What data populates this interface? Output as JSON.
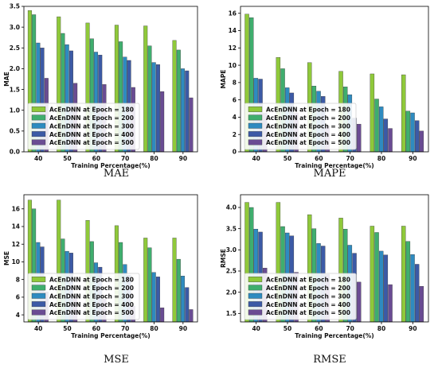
{
  "chart_data": [
    {
      "type": "bar",
      "caption": "MAE",
      "xlabel": "Training Percentage(%)",
      "ylabel": "MAE",
      "categories": [
        "40",
        "50",
        "60",
        "70",
        "80",
        "90"
      ],
      "ylim": [
        0,
        3.5
      ],
      "yticks": [
        "0.0",
        "0.5",
        "1.0",
        "1.5",
        "2.0",
        "2.5",
        "3.0",
        "3.5"
      ],
      "grid": false,
      "legend_position": "lower-left",
      "series": [
        {
          "name": "AcEnDNN at Epoch = 180",
          "values": [
            3.4,
            3.25,
            3.1,
            3.05,
            3.03,
            2.68
          ]
        },
        {
          "name": "AcEnDNN at Epoch = 200",
          "values": [
            3.3,
            2.85,
            2.72,
            2.65,
            2.55,
            2.45
          ]
        },
        {
          "name": "AcEnDNN at Epoch = 300",
          "values": [
            2.62,
            2.58,
            2.4,
            2.28,
            2.15,
            2.0
          ]
        },
        {
          "name": "AcEnDNN at Epoch = 400",
          "values": [
            2.5,
            2.43,
            2.33,
            2.2,
            2.1,
            1.95
          ]
        },
        {
          "name": "AcEnDNN at Epoch = 500",
          "values": [
            1.77,
            1.65,
            1.62,
            1.55,
            1.45,
            1.3
          ]
        }
      ]
    },
    {
      "type": "bar",
      "caption": "MAPE",
      "xlabel": "Training Percentage(%)",
      "ylabel": "MAPE",
      "categories": [
        "40",
        "50",
        "60",
        "70",
        "80",
        "90"
      ],
      "ylim": [
        0,
        16.8
      ],
      "yticks": [
        "0",
        "2",
        "4",
        "6",
        "8",
        "10",
        "12",
        "14",
        "16"
      ],
      "grid": false,
      "legend_position": "lower-left",
      "series": [
        {
          "name": "AcEnDNN at Epoch = 180",
          "values": [
            15.9,
            10.9,
            10.3,
            9.3,
            9.0,
            8.9
          ]
        },
        {
          "name": "AcEnDNN at Epoch = 200",
          "values": [
            15.5,
            9.6,
            7.6,
            7.5,
            6.1,
            4.7
          ]
        },
        {
          "name": "AcEnDNN at Epoch = 300",
          "values": [
            8.5,
            7.4,
            7.0,
            6.6,
            5.2,
            4.5
          ]
        },
        {
          "name": "AcEnDNN at Epoch = 400",
          "values": [
            8.4,
            6.8,
            6.4,
            3.9,
            3.8,
            3.6
          ]
        },
        {
          "name": "AcEnDNN at Epoch = 500",
          "values": [
            4.5,
            4.5,
            3.0,
            3.2,
            2.7,
            2.4
          ]
        }
      ]
    },
    {
      "type": "bar",
      "caption": "MSE",
      "xlabel": "Training Percentage(%)",
      "ylabel": "MSE",
      "categories": [
        "40",
        "50",
        "60",
        "70",
        "80",
        "90"
      ],
      "ylim": [
        3.2,
        17.6
      ],
      "yticks": [
        "4",
        "6",
        "8",
        "10",
        "12",
        "14",
        "16"
      ],
      "grid": false,
      "legend_position": "lower-left",
      "series": [
        {
          "name": "AcEnDNN at Epoch = 180",
          "values": [
            17.0,
            17.0,
            14.7,
            14.1,
            12.7,
            12.7
          ]
        },
        {
          "name": "AcEnDNN at Epoch = 200",
          "values": [
            16.0,
            12.6,
            12.3,
            12.2,
            11.6,
            10.3
          ]
        },
        {
          "name": "AcEnDNN at Epoch = 300",
          "values": [
            12.2,
            11.2,
            9.9,
            9.7,
            8.8,
            8.4
          ]
        },
        {
          "name": "AcEnDNN at Epoch = 400",
          "values": [
            11.7,
            11.0,
            9.4,
            8.5,
            8.3,
            7.1
          ]
        },
        {
          "name": "AcEnDNN at Epoch = 500",
          "values": [
            6.6,
            6.1,
            5.8,
            5.0,
            4.8,
            4.6
          ]
        }
      ]
    },
    {
      "type": "bar",
      "caption": "RMSE",
      "xlabel": "Training Percentage(%)",
      "ylabel": "RMSE",
      "categories": [
        "40",
        "50",
        "60",
        "70",
        "80",
        "90"
      ],
      "ylim": [
        1.3,
        4.3
      ],
      "yticks": [
        "1.5",
        "2.0",
        "2.5",
        "3.0",
        "3.5",
        "4.0"
      ],
      "grid": false,
      "legend_position": "lower-left",
      "series": [
        {
          "name": "AcEnDNN at Epoch = 180",
          "values": [
            4.12,
            4.12,
            3.83,
            3.75,
            3.56,
            3.56
          ]
        },
        {
          "name": "AcEnDNN at Epoch = 200",
          "values": [
            4.0,
            3.55,
            3.5,
            3.49,
            3.41,
            3.2
          ]
        },
        {
          "name": "AcEnDNN at Epoch = 300",
          "values": [
            3.49,
            3.4,
            3.15,
            3.11,
            2.97,
            2.89
          ]
        },
        {
          "name": "AcEnDNN at Epoch = 400",
          "values": [
            3.42,
            3.33,
            3.09,
            2.92,
            2.88,
            2.66
          ]
        },
        {
          "name": "AcEnDNN at Epoch = 500",
          "values": [
            2.57,
            2.47,
            2.42,
            2.24,
            2.18,
            2.14
          ]
        }
      ]
    }
  ],
  "colors": [
    "#8fc93a",
    "#3fae6e",
    "#2e8bc0",
    "#3c5aa6",
    "#6a4c93"
  ]
}
